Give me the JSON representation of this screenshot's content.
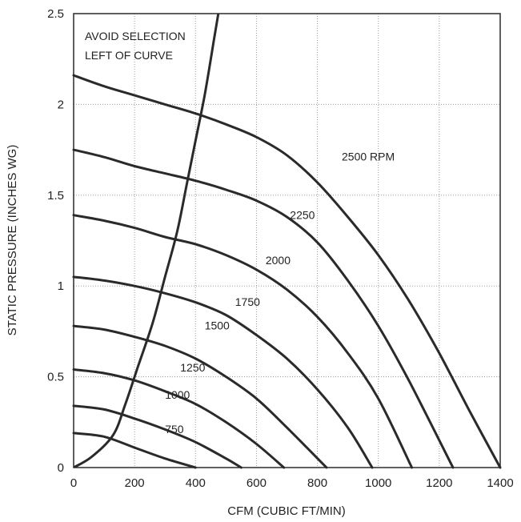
{
  "chart_data": {
    "type": "line",
    "xlabel": "CFM (CUBIC FT/MIN)",
    "ylabel": "STATIC PRESSURE (INCHES WG)",
    "xlim": [
      0,
      1400
    ],
    "ylim": [
      0,
      2.5
    ],
    "xticks": [
      0,
      200,
      400,
      600,
      800,
      1000,
      1200,
      1400
    ],
    "yticks": [
      0,
      0.5,
      1,
      1.5,
      2,
      2.5
    ],
    "grid": true,
    "annotation": [
      "AVOID SELECTION",
      "LEFT OF CURVE"
    ],
    "series": [
      {
        "name": "750",
        "label": "750",
        "label_at": [
          300,
          0.19
        ],
        "x": [
          0,
          100,
          200,
          300,
          400
        ],
        "y": [
          0.19,
          0.17,
          0.11,
          0.05,
          0
        ]
      },
      {
        "name": "1000",
        "label": "1000",
        "label_at": [
          300,
          0.38
        ],
        "x": [
          0,
          100,
          200,
          300,
          400,
          500,
          550
        ],
        "y": [
          0.34,
          0.32,
          0.27,
          0.21,
          0.14,
          0.05,
          0
        ]
      },
      {
        "name": "1250",
        "label": "1250",
        "label_at": [
          350,
          0.53
        ],
        "x": [
          0,
          100,
          200,
          300,
          400,
          500,
          600,
          690
        ],
        "y": [
          0.54,
          0.52,
          0.48,
          0.42,
          0.35,
          0.25,
          0.13,
          0
        ]
      },
      {
        "name": "1500",
        "label": "1500",
        "label_at": [
          430,
          0.76
        ],
        "x": [
          0,
          100,
          200,
          300,
          400,
          500,
          600,
          700,
          830
        ],
        "y": [
          0.78,
          0.76,
          0.72,
          0.67,
          0.6,
          0.5,
          0.38,
          0.22,
          0
        ]
      },
      {
        "name": "1750",
        "label": "1750",
        "label_at": [
          530,
          0.89
        ],
        "x": [
          0,
          100,
          200,
          300,
          400,
          500,
          600,
          700,
          800,
          900,
          980
        ],
        "y": [
          1.05,
          1.03,
          1.0,
          0.96,
          0.91,
          0.84,
          0.73,
          0.6,
          0.43,
          0.22,
          0
        ]
      },
      {
        "name": "2000",
        "label": "2000",
        "label_at": [
          630,
          1.12
        ],
        "x": [
          0,
          100,
          200,
          300,
          400,
          500,
          600,
          700,
          800,
          900,
          1000,
          1110
        ],
        "y": [
          1.39,
          1.36,
          1.32,
          1.27,
          1.23,
          1.17,
          1.09,
          0.98,
          0.83,
          0.63,
          0.38,
          0
        ]
      },
      {
        "name": "2250",
        "label": "2250",
        "label_at": [
          710,
          1.37
        ],
        "x": [
          0,
          100,
          200,
          300,
          400,
          500,
          600,
          700,
          800,
          900,
          1000,
          1100,
          1245
        ],
        "y": [
          1.75,
          1.71,
          1.66,
          1.62,
          1.58,
          1.53,
          1.47,
          1.38,
          1.24,
          1.03,
          0.78,
          0.48,
          0
        ]
      },
      {
        "name": "2500 RPM",
        "label": "2500 RPM",
        "label_at": [
          880,
          1.69
        ],
        "x": [
          0,
          100,
          200,
          300,
          400,
          500,
          600,
          700,
          800,
          900,
          1000,
          1100,
          1200,
          1300,
          1400
        ],
        "y": [
          2.16,
          2.1,
          2.05,
          2.0,
          1.95,
          1.89,
          1.82,
          1.72,
          1.57,
          1.38,
          1.17,
          0.92,
          0.63,
          0.31,
          0
        ]
      }
    ],
    "limit_curve": {
      "name": "AVOID SELECTION LEFT OF CURVE",
      "x": [
        0,
        60,
        130,
        170,
        210,
        260,
        300,
        340,
        370,
        400,
        430,
        460,
        480
      ],
      "y": [
        0,
        0.06,
        0.18,
        0.35,
        0.55,
        0.8,
        1.05,
        1.3,
        1.55,
        1.8,
        2.05,
        2.35,
        2.55
      ]
    }
  }
}
